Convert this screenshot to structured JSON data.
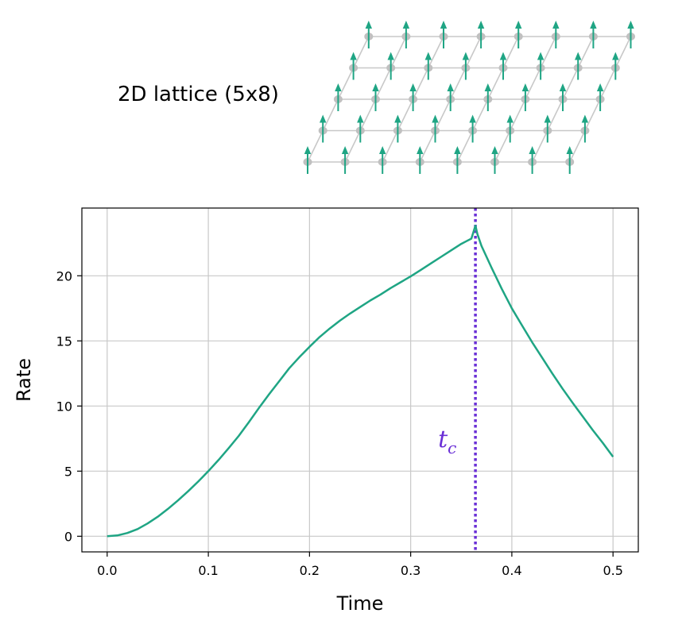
{
  "colors": {
    "curve": "#1fa584",
    "critical": "#6a2fd6",
    "grid": "#c8c8c8",
    "lattice_bond": "#c8c8c8",
    "lattice_site": "#c0c0c0",
    "spin": "#1fa584"
  },
  "inset": {
    "title": "2D lattice (5x8)",
    "rows": 5,
    "cols": 8
  },
  "chart_data": {
    "type": "line",
    "xlabel": "Time",
    "ylabel": "Rate",
    "xlim": [
      -0.025,
      0.525
    ],
    "ylim": [
      -1.2,
      25.2
    ],
    "xticks": [
      0.0,
      0.1,
      0.2,
      0.3,
      0.4,
      0.5
    ],
    "xtick_labels": [
      "0.0",
      "0.1",
      "0.2",
      "0.3",
      "0.4",
      "0.5"
    ],
    "yticks": [
      0,
      5,
      10,
      15,
      20
    ],
    "ytick_labels": [
      "0",
      "5",
      "10",
      "15",
      "20"
    ],
    "grid": true,
    "critical_time": {
      "x": 0.364,
      "label": "t",
      "subscript": "c"
    },
    "series": [
      {
        "x": [
          0.0,
          0.01,
          0.02,
          0.03,
          0.04,
          0.05,
          0.06,
          0.07,
          0.08,
          0.09,
          0.1,
          0.11,
          0.12,
          0.13,
          0.14,
          0.15,
          0.16,
          0.17,
          0.18,
          0.19,
          0.2,
          0.21,
          0.22,
          0.23,
          0.24,
          0.25,
          0.26,
          0.27,
          0.28,
          0.29,
          0.3,
          0.31,
          0.32,
          0.33,
          0.34,
          0.35,
          0.355,
          0.36,
          0.364,
          0.366,
          0.37,
          0.38,
          0.39,
          0.4,
          0.41,
          0.42,
          0.43,
          0.44,
          0.45,
          0.46,
          0.47,
          0.48,
          0.49,
          0.5
        ],
        "y": [
          0.0,
          0.06,
          0.25,
          0.55,
          0.98,
          1.5,
          2.1,
          2.75,
          3.45,
          4.2,
          5.0,
          5.85,
          6.75,
          7.7,
          8.75,
          9.85,
          10.9,
          11.9,
          12.9,
          13.75,
          14.55,
          15.3,
          15.95,
          16.55,
          17.1,
          17.6,
          18.1,
          18.55,
          19.05,
          19.5,
          19.95,
          20.45,
          20.95,
          21.45,
          21.95,
          22.45,
          22.65,
          22.85,
          23.85,
          23.2,
          22.3,
          20.6,
          19.0,
          17.5,
          16.2,
          14.9,
          13.7,
          12.5,
          11.35,
          10.25,
          9.2,
          8.15,
          7.15,
          6.1
        ]
      }
    ]
  }
}
